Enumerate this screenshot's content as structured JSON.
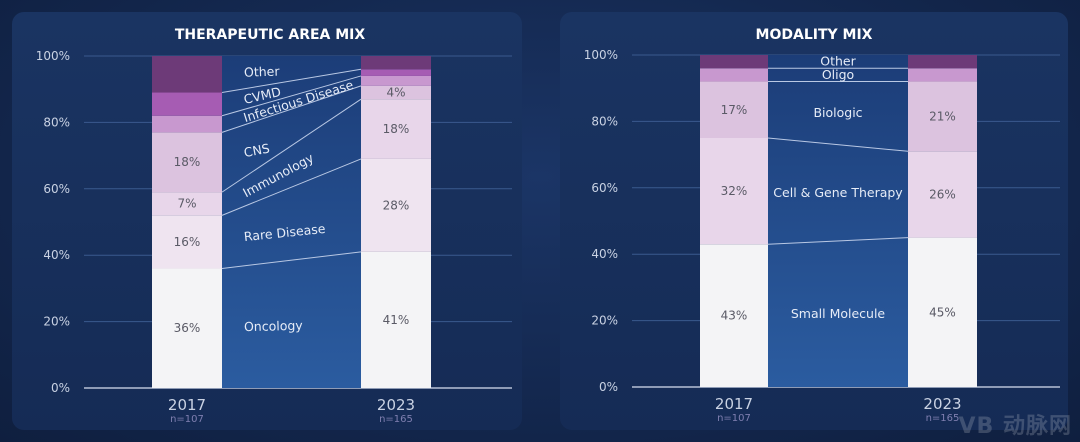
{
  "chart_data": [
    {
      "type": "bar",
      "stacked": true,
      "title": "THERAPEUTIC AREA MIX",
      "ylim": [
        0,
        100
      ],
      "yticks": [
        "0%",
        "20%",
        "40%",
        "60%",
        "80%",
        "100%"
      ],
      "grid": true,
      "categories": [
        "2017",
        "2023"
      ],
      "sample_sizes": [
        "n=107",
        "n=165"
      ],
      "series": [
        {
          "name": "Oncology",
          "values": [
            36,
            41
          ],
          "labels": [
            "36%",
            "41%"
          ],
          "color": "#f4f4f6"
        },
        {
          "name": "Rare Disease",
          "values": [
            16,
            28
          ],
          "labels": [
            "16%",
            "28%"
          ],
          "color": "#efe4f0"
        },
        {
          "name": "Immunology",
          "values": [
            7,
            18
          ],
          "labels": [
            "7%",
            "18%"
          ],
          "color": "#e8d6ea"
        },
        {
          "name": "CNS",
          "values": [
            18,
            4
          ],
          "labels": [
            "18%",
            "4%"
          ],
          "color": "#dcc3df"
        },
        {
          "name": "Infectious Disease",
          "values": [
            5,
            3
          ],
          "labels": [
            "",
            ""
          ],
          "color": "#c898cf"
        },
        {
          "name": "CVMD",
          "values": [
            7,
            2
          ],
          "labels": [
            "",
            ""
          ],
          "color": "#a65cb3"
        },
        {
          "name": "Other",
          "values": [
            11,
            4
          ],
          "labels": [
            "",
            ""
          ],
          "color": "#6d3a78"
        }
      ]
    },
    {
      "type": "bar",
      "stacked": true,
      "title": "MODALITY MIX",
      "ylim": [
        0,
        100
      ],
      "yticks": [
        "0%",
        "20%",
        "40%",
        "60%",
        "80%",
        "100%"
      ],
      "grid": true,
      "categories": [
        "2017",
        "2023"
      ],
      "sample_sizes": [
        "n=107",
        "n=165"
      ],
      "series": [
        {
          "name": "Small Molecule",
          "values": [
            43,
            45
          ],
          "labels": [
            "43%",
            "45%"
          ],
          "color": "#f4f4f6"
        },
        {
          "name": "Cell & Gene Therapy",
          "values": [
            32,
            26
          ],
          "labels": [
            "32%",
            "26%"
          ],
          "color": "#e8d6ea"
        },
        {
          "name": "Biologic",
          "values": [
            17,
            21
          ],
          "labels": [
            "17%",
            "21%"
          ],
          "color": "#dcc3df"
        },
        {
          "name": "Oligo",
          "values": [
            4,
            4
          ],
          "labels": [
            "",
            ""
          ],
          "color": "#c898cf"
        },
        {
          "name": "Other",
          "values": [
            4,
            4
          ],
          "labels": [
            "",
            ""
          ],
          "color": "#6d3a78"
        }
      ]
    }
  ],
  "colors": {
    "band_top": "#1c3d78",
    "band_bottom": "#2b5ca0",
    "connector": "#b9c8e4"
  },
  "watermark": "动脉网 VBDATA.CN"
}
